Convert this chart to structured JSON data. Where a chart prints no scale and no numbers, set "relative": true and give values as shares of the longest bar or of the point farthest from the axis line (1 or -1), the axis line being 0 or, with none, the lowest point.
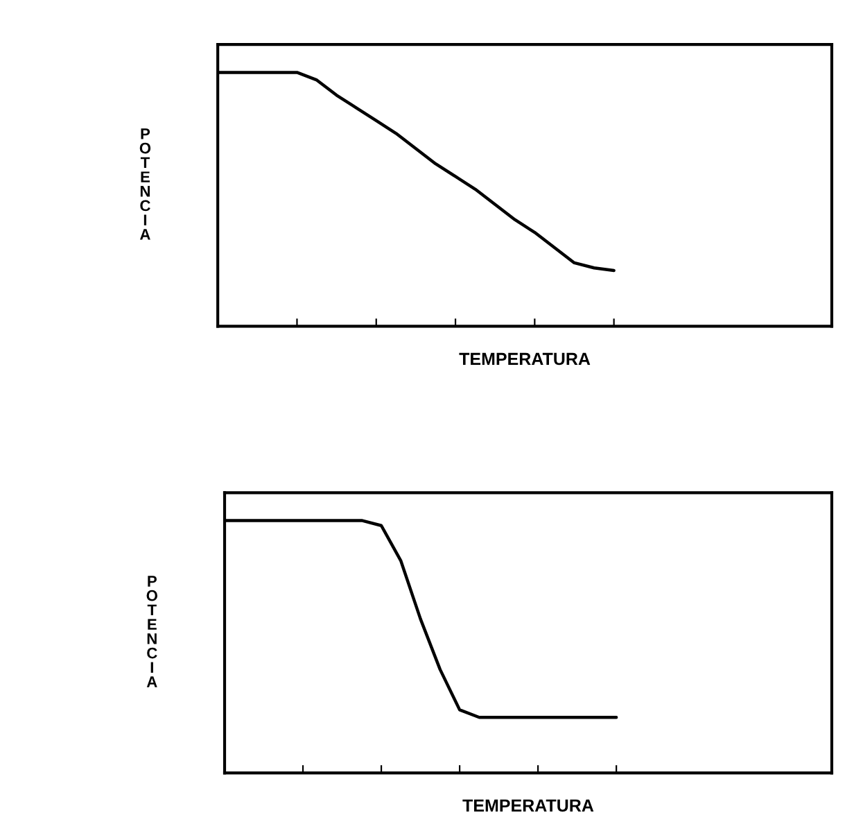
{
  "chart_data": [
    {
      "type": "line",
      "relative": true,
      "xlabel": "TEMPERATURA",
      "ylabel": "POTENCIA",
      "categories": [
        null,
        null,
        null,
        null,
        null,
        null,
        null,
        null,
        null,
        null,
        null,
        null,
        null,
        null,
        null,
        null,
        null,
        null,
        null,
        null,
        null,
        null,
        null,
        null,
        null,
        null,
        null,
        null,
        null,
        null,
        null,
        null
      ],
      "series": [
        {
          "color": "#000000",
          "values": [
            1,
            1,
            1,
            1,
            1,
            0.97,
            0.91,
            0.86,
            0.81,
            0.76,
            0.7,
            0.64,
            0.59,
            0.54,
            0.48,
            0.42,
            0.37,
            0.31,
            0.25,
            0.23,
            0.22,
            null,
            null,
            null,
            null,
            null,
            null,
            null,
            null,
            null,
            null,
            null
          ]
        }
      ]
    },
    {
      "type": "line",
      "relative": true,
      "xlabel": "TEMPERATURA",
      "ylabel": "POTENCIA",
      "categories": [
        null,
        null,
        null,
        null,
        null,
        null,
        null,
        null,
        null,
        null,
        null,
        null,
        null,
        null,
        null,
        null,
        null,
        null,
        null,
        null,
        null,
        null,
        null,
        null,
        null,
        null,
        null,
        null,
        null,
        null,
        null,
        null
      ],
      "series": [
        {
          "color": "#000000",
          "values": [
            1,
            1,
            1,
            1,
            1,
            1,
            1,
            1,
            0.98,
            0.84,
            0.61,
            0.41,
            0.25,
            0.22,
            0.22,
            0.22,
            0.22,
            0.22,
            0.22,
            0.22,
            0.22,
            null,
            null,
            null,
            null,
            null,
            null,
            null,
            null,
            null,
            null,
            null
          ]
        }
      ]
    }
  ]
}
